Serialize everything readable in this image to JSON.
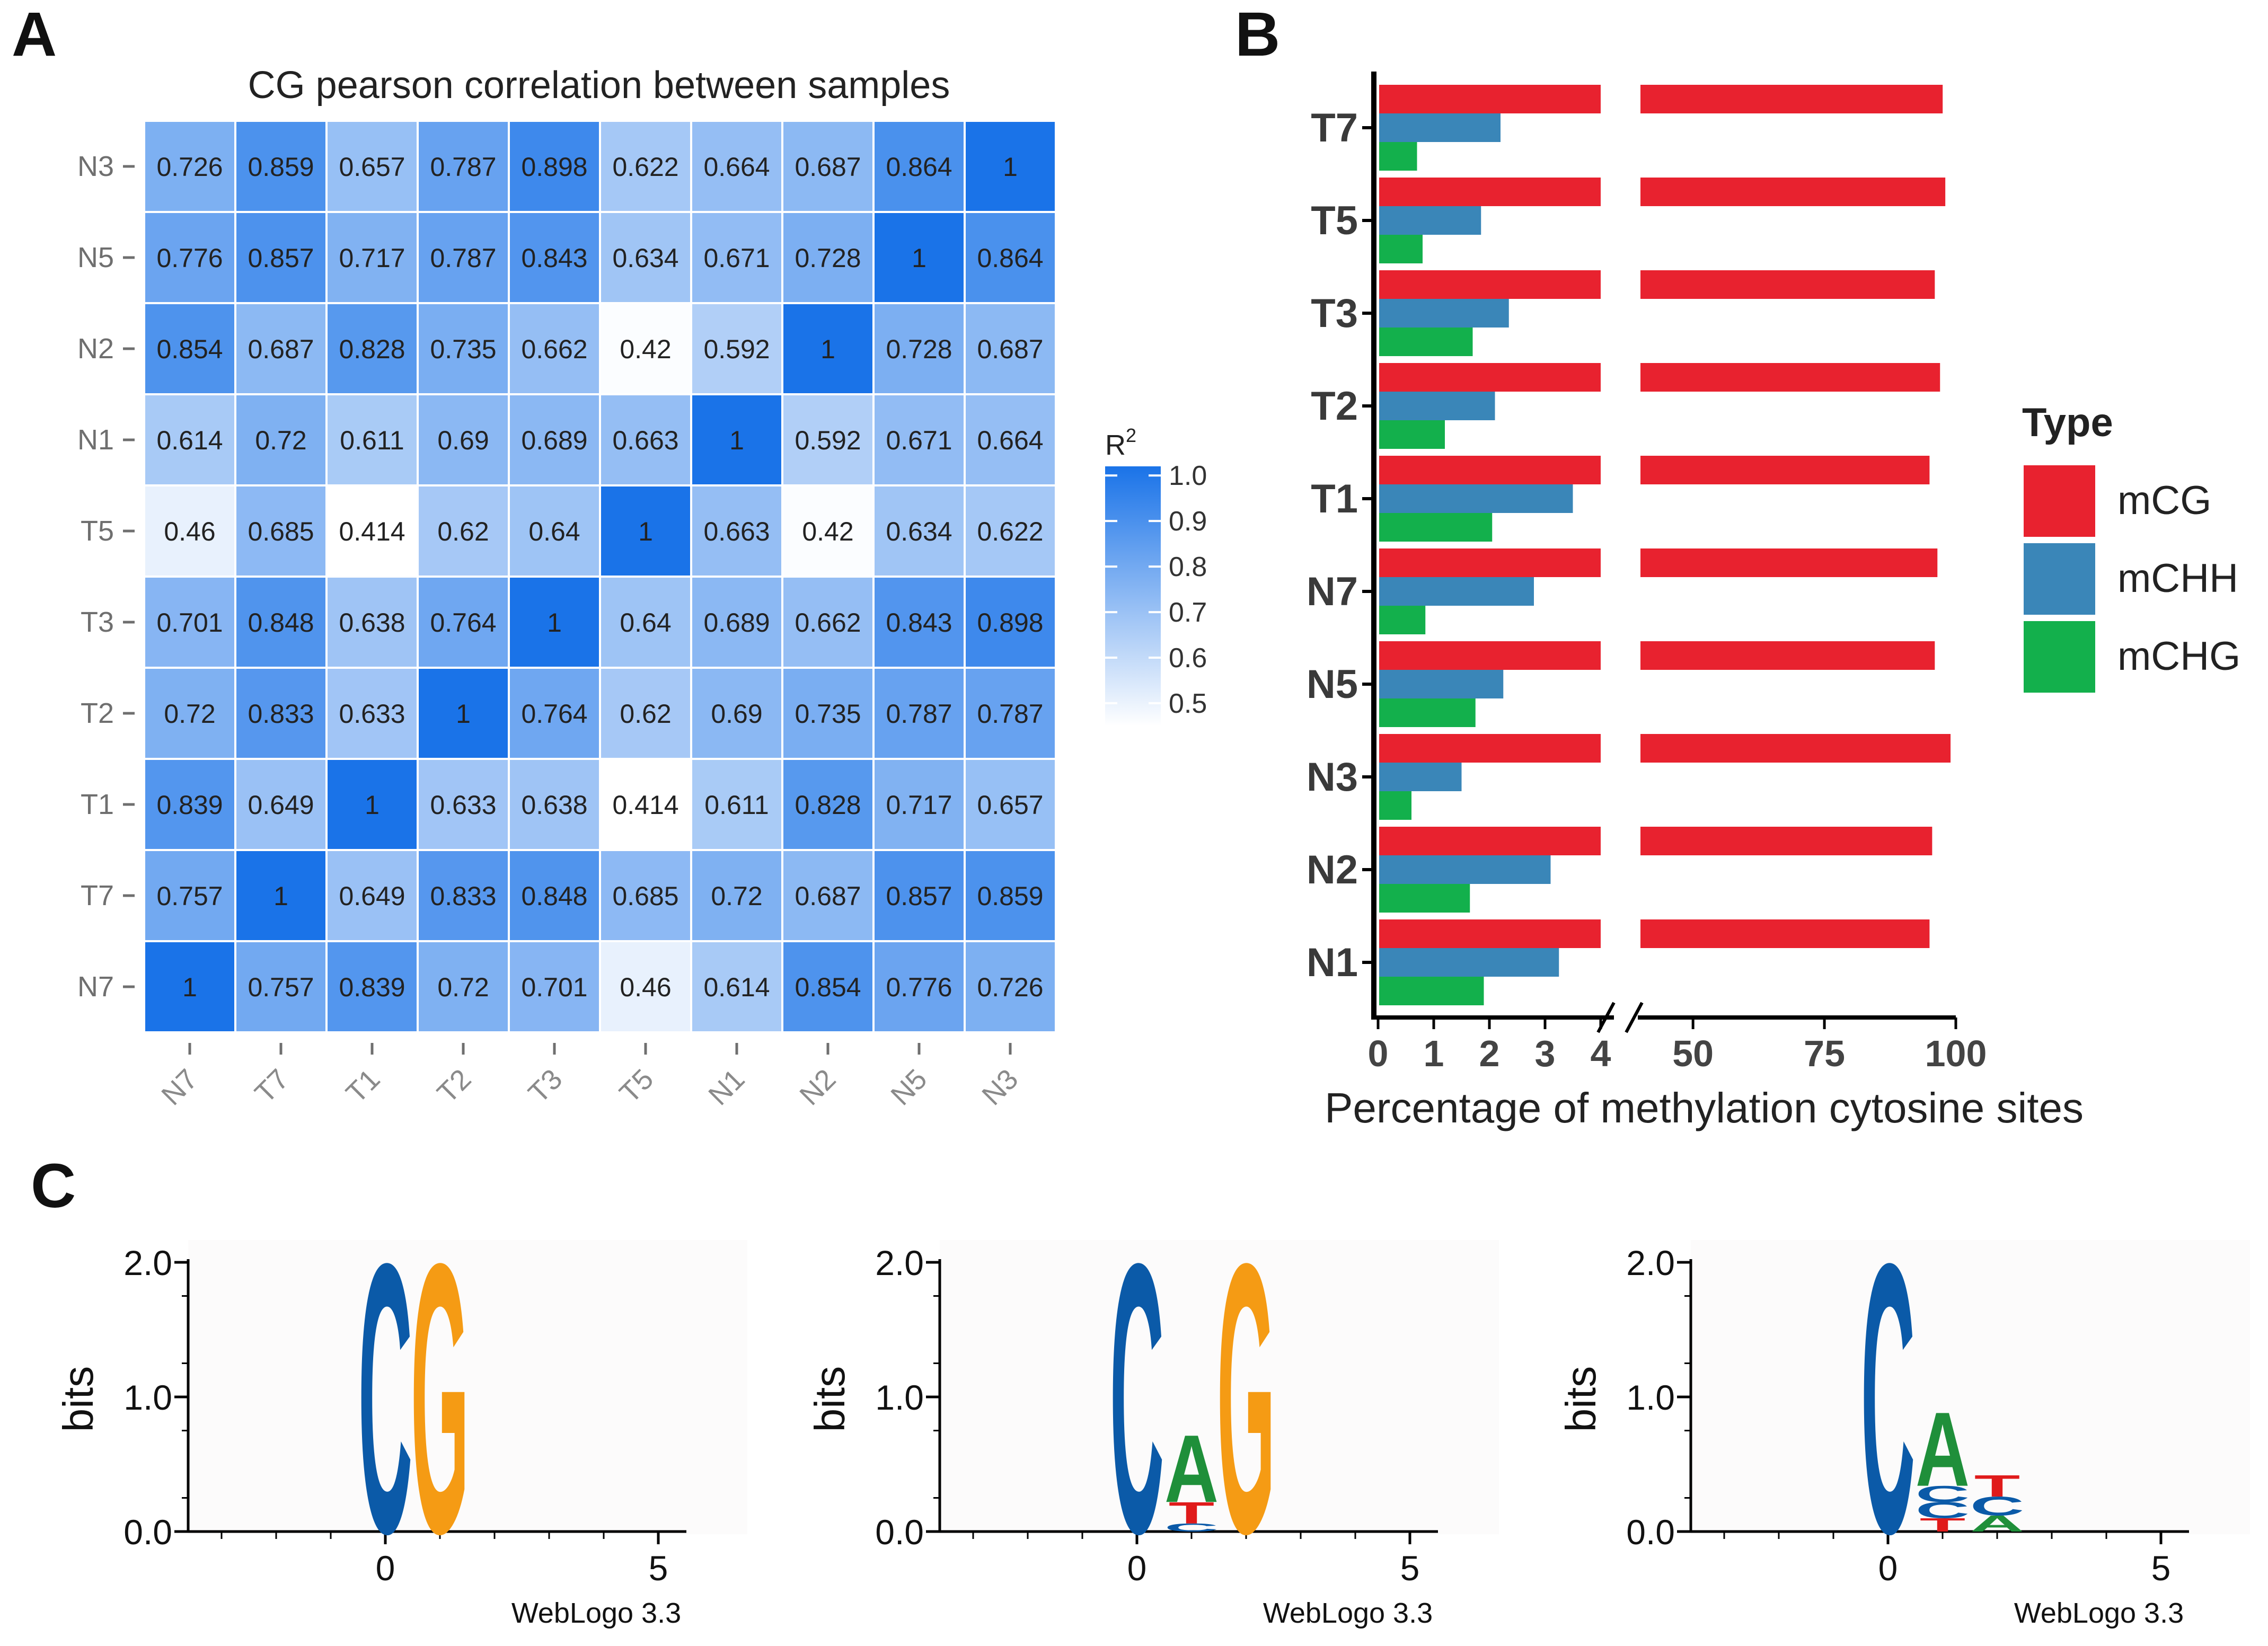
{
  "panel_labels": {
    "a": "A",
    "b": "B",
    "c": "C"
  },
  "colors": {
    "heat_low": "#ffffff",
    "heat_high": "#1a73e8",
    "mCG": "#e8222f",
    "mCHH": "#3a86b8",
    "mCHG": "#13b04c",
    "logo_C": "#0b5aa8",
    "logo_G": "#f59b14",
    "logo_A": "#1f8f3a",
    "logo_T": "#e01b1b"
  },
  "chart_data": [
    {
      "type": "heatmap",
      "title": "CG pearson correlation between samples",
      "columns": [
        "N7",
        "T7",
        "T1",
        "T2",
        "T3",
        "T5",
        "N1",
        "N2",
        "N5",
        "N3"
      ],
      "rows": [
        "N3",
        "N5",
        "N2",
        "N1",
        "T5",
        "T3",
        "T2",
        "T1",
        "T7",
        "N7"
      ],
      "values": [
        [
          "0.726",
          "0.859",
          "0.657",
          "0.787",
          "0.898",
          "0.622",
          "0.664",
          "0.687",
          "0.864",
          "1"
        ],
        [
          "0.776",
          "0.857",
          "0.717",
          "0.787",
          "0.843",
          "0.634",
          "0.671",
          "0.728",
          "1",
          "0.864"
        ],
        [
          "0.854",
          "0.687",
          "0.828",
          "0.735",
          "0.662",
          "0.42",
          "0.592",
          "1",
          "0.728",
          "0.687"
        ],
        [
          "0.614",
          "0.72",
          "0.611",
          "0.69",
          "0.689",
          "0.663",
          "1",
          "0.592",
          "0.671",
          "0.664"
        ],
        [
          "0.46",
          "0.685",
          "0.414",
          "0.62",
          "0.64",
          "1",
          "0.663",
          "0.42",
          "0.634",
          "0.622"
        ],
        [
          "0.701",
          "0.848",
          "0.638",
          "0.764",
          "1",
          "0.64",
          "0.689",
          "0.662",
          "0.843",
          "0.898"
        ],
        [
          "0.72",
          "0.833",
          "0.633",
          "1",
          "0.764",
          "0.62",
          "0.69",
          "0.735",
          "0.787",
          "0.787"
        ],
        [
          "0.839",
          "0.649",
          "1",
          "0.633",
          "0.638",
          "0.414",
          "0.611",
          "0.828",
          "0.717",
          "0.657"
        ],
        [
          "0.757",
          "1",
          "0.649",
          "0.833",
          "0.848",
          "0.685",
          "0.72",
          "0.687",
          "0.857",
          "0.859"
        ],
        [
          "1",
          "0.757",
          "0.839",
          "0.72",
          "0.701",
          "0.46",
          "0.614",
          "0.854",
          "0.776",
          "0.726"
        ]
      ],
      "legend_title": "R",
      "legend_superscript": "2",
      "legend_ticks": [
        "1.0",
        "0.9",
        "0.8",
        "0.7",
        "0.6",
        "0.5"
      ],
      "color_range": [
        0.414,
        1.0
      ]
    },
    {
      "type": "bar",
      "orientation": "horizontal",
      "categories": [
        "T7",
        "T5",
        "T3",
        "T2",
        "T1",
        "N7",
        "N5",
        "N3",
        "N2",
        "N1"
      ],
      "series": [
        {
          "name": "mCG",
          "values": [
            97.5,
            98.0,
            96.0,
            97.0,
            95.0,
            96.5,
            96.0,
            99.0,
            95.5,
            95.0
          ]
        },
        {
          "name": "mCHH",
          "values": [
            2.2,
            1.85,
            2.35,
            2.1,
            3.5,
            2.8,
            2.25,
            1.5,
            3.1,
            3.25
          ]
        },
        {
          "name": "mCHG",
          "values": [
            0.7,
            0.8,
            1.7,
            1.2,
            2.05,
            0.85,
            1.75,
            0.6,
            1.65,
            1.9
          ]
        }
      ],
      "xlabel": "Percentage of methylation cytosine sites",
      "x_ticks_low": [
        "0",
        "1",
        "2",
        "3",
        "4"
      ],
      "x_ticks_high": [
        "50",
        "75",
        "100"
      ],
      "axis_break": [
        4,
        40
      ],
      "legend_title": "Type",
      "legend_placement": "right"
    },
    {
      "type": "sequence-logo",
      "logos": [
        {
          "ylabel": "bits",
          "y_ticks": [
            "0.0",
            "1.0",
            "2.0"
          ],
          "x_ticks": [
            "0",
            "5"
          ],
          "credit": "WebLogo 3.3",
          "columns": [
            {
              "pos": 0,
              "letters": [
                {
                  "l": "C",
                  "bits": 2.0
                }
              ]
            },
            {
              "pos": 1,
              "letters": [
                {
                  "l": "G",
                  "bits": 2.0
                }
              ]
            }
          ]
        },
        {
          "ylabel": "bits",
          "y_ticks": [
            "0.0",
            "1.0",
            "2.0"
          ],
          "x_ticks": [
            "0",
            "5"
          ],
          "credit": "WebLogo 3.3",
          "columns": [
            {
              "pos": 0,
              "letters": [
                {
                  "l": "C",
                  "bits": 2.0
                }
              ]
            },
            {
              "pos": 1,
              "letters": [
                {
                  "l": "C",
                  "bits": 0.06
                },
                {
                  "l": "T",
                  "bits": 0.16
                },
                {
                  "l": "A",
                  "bits": 0.5
                }
              ]
            },
            {
              "pos": 2,
              "letters": [
                {
                  "l": "G",
                  "bits": 2.0
                }
              ]
            }
          ]
        },
        {
          "ylabel": "bits",
          "y_ticks": [
            "0.0",
            "1.0",
            "2.0"
          ],
          "x_ticks": [
            "0",
            "5"
          ],
          "credit": "WebLogo 3.3",
          "columns": [
            {
              "pos": 0,
              "letters": [
                {
                  "l": "C",
                  "bits": 2.0
                }
              ]
            },
            {
              "pos": 1,
              "letters": [
                {
                  "l": "T",
                  "bits": 0.1
                },
                {
                  "l": "C",
                  "bits": 0.12
                },
                {
                  "l": "C",
                  "bits": 0.12
                },
                {
                  "l": "A",
                  "bits": 0.55
                }
              ]
            },
            {
              "pos": 2,
              "letters": [
                {
                  "l": "A",
                  "bits": 0.12
                },
                {
                  "l": "C",
                  "bits": 0.14
                },
                {
                  "l": "T",
                  "bits": 0.16
                }
              ]
            }
          ]
        }
      ]
    }
  ]
}
